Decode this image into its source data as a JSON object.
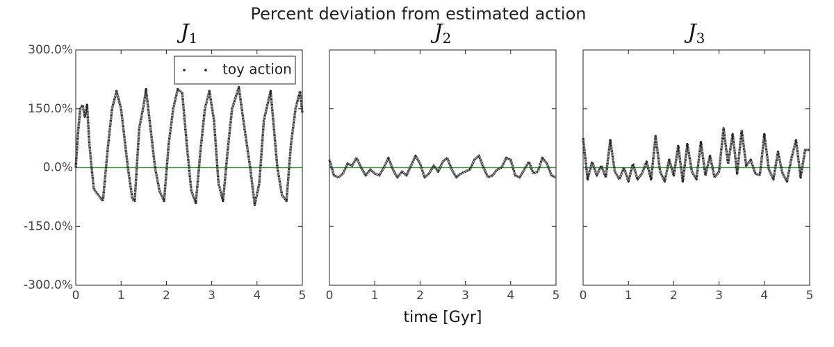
{
  "title": "Percent deviation from estimated action",
  "chart_data": [
    {
      "type": "line",
      "title": "J",
      "title_subscript": "1",
      "legend": "upper right",
      "hline": 0,
      "hline_color": "#3a9a3a",
      "ytick_labels": true,
      "xlim": [
        0,
        5
      ],
      "xticks": [
        0,
        1,
        2,
        3,
        4,
        5
      ],
      "ylim": [
        -300,
        300
      ],
      "yticks": [
        {
          "value": -300,
          "label": "-300.0%"
        },
        {
          "value": -150,
          "label": "-150.0%"
        },
        {
          "value": 0,
          "label": "0.0%"
        },
        {
          "value": 150,
          "label": "150.0%"
        },
        {
          "value": 300,
          "label": "300.0%"
        }
      ],
      "x": [
        0,
        0.05,
        0.1,
        0.15,
        0.2,
        0.25,
        0.3,
        0.35,
        0.4,
        0.5,
        0.6,
        0.7,
        0.8,
        0.9,
        1.0,
        1.05,
        1.15,
        1.25,
        1.3,
        1.4,
        1.5,
        1.55,
        1.65,
        1.75,
        1.85,
        1.95,
        2.05,
        2.15,
        2.25,
        2.35,
        2.45,
        2.55,
        2.65,
        2.75,
        2.85,
        2.95,
        3.05,
        3.15,
        3.25,
        3.35,
        3.45,
        3.6,
        3.7,
        3.85,
        3.95,
        4.05,
        4.15,
        4.25,
        4.3,
        4.45,
        4.55,
        4.65,
        4.75,
        4.85,
        4.95,
        5.0
      ],
      "series": [
        {
          "name": "toy action",
          "color": "#222222",
          "values": [
            0,
            90,
            150,
            160,
            130,
            160,
            60,
            0,
            -55,
            -70,
            -85,
            40,
            150,
            195,
            150,
            100,
            0,
            -80,
            -85,
            100,
            160,
            200,
            100,
            0,
            -60,
            -85,
            60,
            150,
            200,
            190,
            60,
            -60,
            -90,
            40,
            150,
            195,
            120,
            -40,
            -85,
            40,
            150,
            205,
            120,
            0,
            -95,
            -40,
            120,
            170,
            195,
            0,
            -70,
            -85,
            60,
            150,
            195,
            140
          ]
        }
      ]
    },
    {
      "type": "line",
      "title": "J",
      "title_subscript": "2",
      "xlabel": "time [Gyr]",
      "hline": 0,
      "hline_color": "#3a9a3a",
      "ytick_labels": false,
      "xlim": [
        0,
        5
      ],
      "xticks": [
        0,
        1,
        2,
        3,
        4,
        5
      ],
      "ylim": [
        -300,
        300
      ],
      "yticks": [
        -300,
        -150,
        0,
        150,
        300
      ],
      "x": [
        0,
        0.1,
        0.2,
        0.3,
        0.4,
        0.5,
        0.6,
        0.7,
        0.8,
        0.9,
        1.0,
        1.1,
        1.2,
        1.3,
        1.4,
        1.5,
        1.6,
        1.7,
        1.8,
        1.9,
        2.0,
        2.1,
        2.2,
        2.3,
        2.4,
        2.5,
        2.6,
        2.7,
        2.8,
        2.9,
        3.0,
        3.1,
        3.2,
        3.3,
        3.4,
        3.5,
        3.6,
        3.7,
        3.8,
        3.9,
        4.0,
        4.1,
        4.2,
        4.3,
        4.4,
        4.5,
        4.6,
        4.7,
        4.8,
        4.9,
        5.0
      ],
      "series": [
        {
          "name": "toy action",
          "color": "#222222",
          "values": [
            20,
            -20,
            -25,
            -15,
            10,
            5,
            25,
            0,
            -20,
            -5,
            -15,
            -20,
            0,
            25,
            -5,
            -25,
            -10,
            -20,
            5,
            30,
            10,
            -25,
            -15,
            5,
            -10,
            15,
            25,
            -5,
            -25,
            -15,
            -10,
            -5,
            20,
            30,
            0,
            -25,
            -20,
            -5,
            0,
            25,
            20,
            -20,
            -25,
            -5,
            15,
            -15,
            -10,
            25,
            10,
            -20,
            -25
          ]
        }
      ]
    },
    {
      "type": "line",
      "title": "J",
      "title_subscript": "3",
      "hline": 0,
      "hline_color": "#3a9a3a",
      "ytick_labels": false,
      "xlim": [
        0,
        5
      ],
      "xticks": [
        0,
        1,
        2,
        3,
        4,
        5
      ],
      "ylim": [
        -300,
        300
      ],
      "yticks": [
        -300,
        -150,
        0,
        150,
        300
      ],
      "x": [
        0,
        0.1,
        0.2,
        0.3,
        0.4,
        0.5,
        0.6,
        0.7,
        0.8,
        0.9,
        1.0,
        1.1,
        1.2,
        1.3,
        1.4,
        1.5,
        1.6,
        1.7,
        1.8,
        1.9,
        2.0,
        2.1,
        2.2,
        2.3,
        2.4,
        2.5,
        2.6,
        2.7,
        2.8,
        2.9,
        3.0,
        3.1,
        3.2,
        3.3,
        3.4,
        3.5,
        3.6,
        3.7,
        3.8,
        3.9,
        4.0,
        4.1,
        4.2,
        4.3,
        4.4,
        4.5,
        4.6,
        4.7,
        4.8,
        4.9,
        5.0
      ],
      "series": [
        {
          "name": "toy action",
          "color": "#222222",
          "values": [
            75,
            -30,
            15,
            -20,
            5,
            -25,
            70,
            -10,
            -30,
            0,
            -35,
            10,
            -30,
            -15,
            15,
            -30,
            80,
            -10,
            -35,
            20,
            -20,
            55,
            -35,
            60,
            -10,
            -30,
            65,
            -20,
            30,
            -25,
            -10,
            100,
            10,
            85,
            -15,
            95,
            5,
            20,
            -15,
            -20,
            85,
            -5,
            -30,
            40,
            -15,
            -35,
            25,
            70,
            -25,
            45,
            45
          ]
        }
      ]
    }
  ]
}
